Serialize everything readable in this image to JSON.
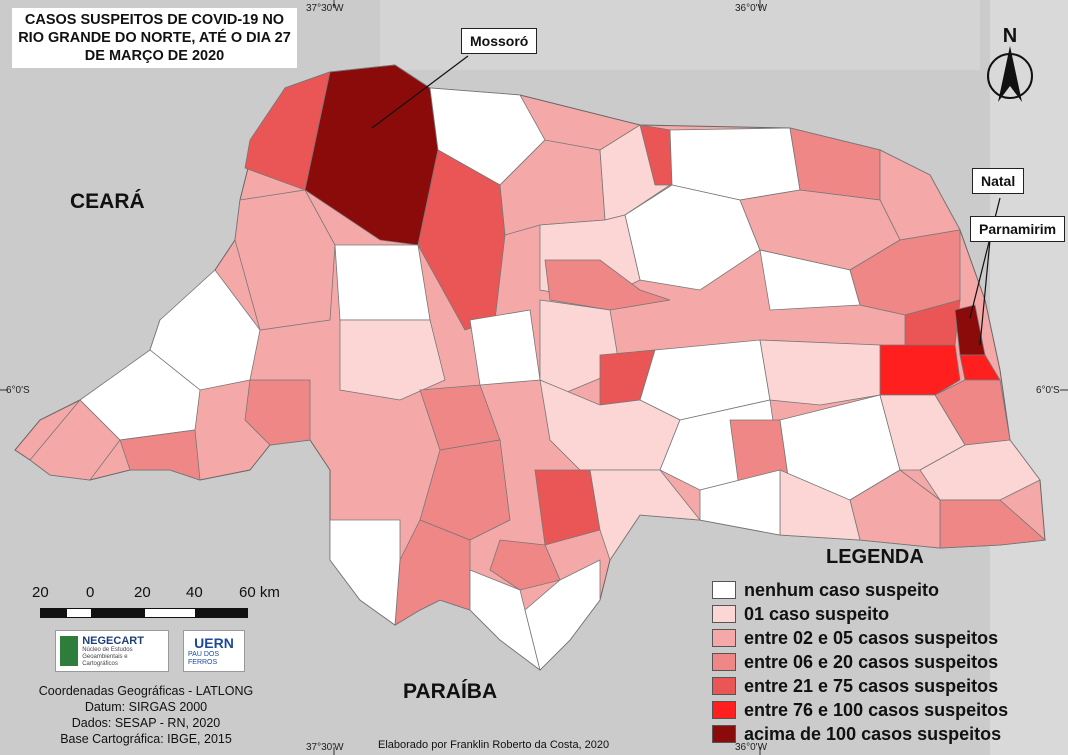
{
  "title": {
    "lines": [
      "CASOS SUSPEITOS DE COVID-19 NO",
      "RIO GRANDE DO NORTE, ATÉ O DIA 27",
      "DE MARÇO DE 2020"
    ]
  },
  "labels": {
    "ceara": "CEARÁ",
    "paraiba": "PARAÍBA",
    "mossoro": "Mossoró",
    "natal": "Natal",
    "parnamirim": "Parnamirim",
    "north": "N"
  },
  "graticule": {
    "lon_west": "37°30'W",
    "lon_east": "36°0'W",
    "lat": "6°0'S"
  },
  "legend": {
    "title": "LEGENDA",
    "items": [
      {
        "label": "nenhum caso suspeito",
        "color": "#ffffff"
      },
      {
        "label": "01 caso suspeito",
        "color": "#fcd5d5"
      },
      {
        "label": "entre 02 e 05 casos suspeitos",
        "color": "#f5a8a8"
      },
      {
        "label": "entre 06 e 20 casos suspeitos",
        "color": "#f08787"
      },
      {
        "label": "entre 21 e 75 casos suspeitos",
        "color": "#ea5656"
      },
      {
        "label": "entre 76 e 100 casos suspeitos",
        "color": "#ff1f1f"
      },
      {
        "label": "acima de 100 casos suspeitos",
        "color": "#8b0a0a"
      }
    ]
  },
  "scale_bar": {
    "labels": [
      "20",
      "0",
      "20",
      "40",
      "60 km"
    ]
  },
  "logos": {
    "negecart": "NEGECART",
    "negecart_sub": "Núcleo de Estudos Geoambientais e Cartográficos",
    "uern": "UERN",
    "uern_sub": "PAU DOS FERROS"
  },
  "credits": [
    "Coordenadas Geográficas - LATLONG",
    "Datum: SIRGAS 2000",
    "Dados: SESAP - RN, 2020",
    "Base Cartográfica: IBGE, 2015"
  ],
  "author": "Elaborado por Franklin Roberto da Costa, 2020"
}
